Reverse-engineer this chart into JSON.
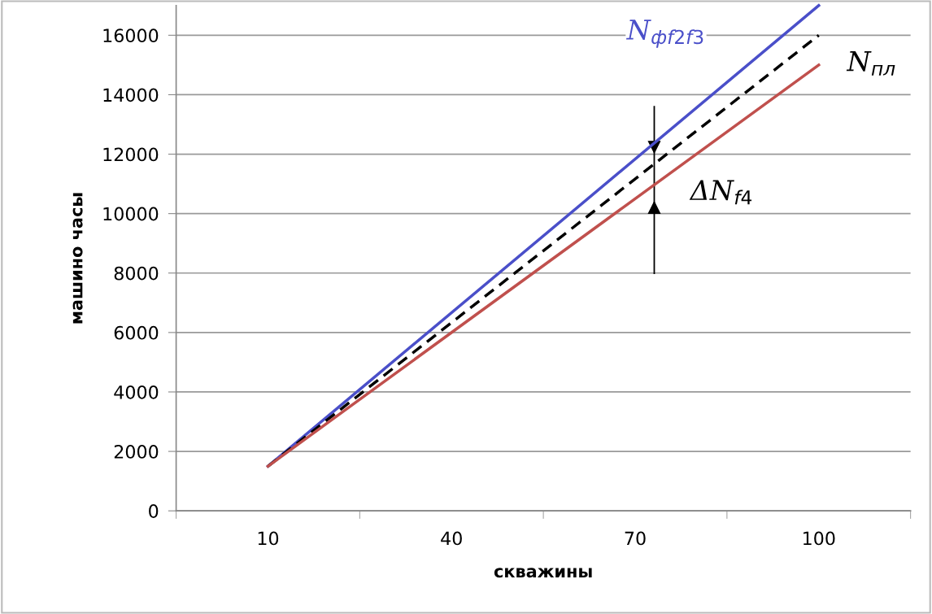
{
  "chart_data": {
    "type": "line",
    "xlabel": "скважины",
    "ylabel": "машино часы",
    "x": [
      10,
      100
    ],
    "series": [
      {
        "name": "N$_{фf2f3}$",
        "color": "#4a4fc9",
        "values": [
          1500,
          17000
        ]
      },
      {
        "name": "N$_{пл}$",
        "color": "#000000",
        "values": [
          1500,
          16000
        ],
        "line_style": "dashed"
      },
      {
        "color": "#c0504d",
        "values": [
          1500,
          15000
        ]
      }
    ],
    "annotations": [
      "ΔN$_{f4}$"
    ],
    "xlim": [
      -5,
      115
    ],
    "xticks": [
      {
        "value": -5,
        "label": null
      },
      10,
      {
        "value": 25,
        "label": null
      },
      40,
      {
        "value": 55,
        "label": null
      },
      70,
      {
        "value": 85,
        "label": null
      },
      100,
      {
        "value": 115,
        "label": null
      }
    ],
    "ylim": [
      0,
      17000
    ],
    "yticks": [
      0,
      2000,
      4000,
      6000,
      8000,
      10000,
      12000,
      14000,
      16000
    ],
    "grid": "y",
    "marker": "none",
    "line_style": "solid"
  }
}
